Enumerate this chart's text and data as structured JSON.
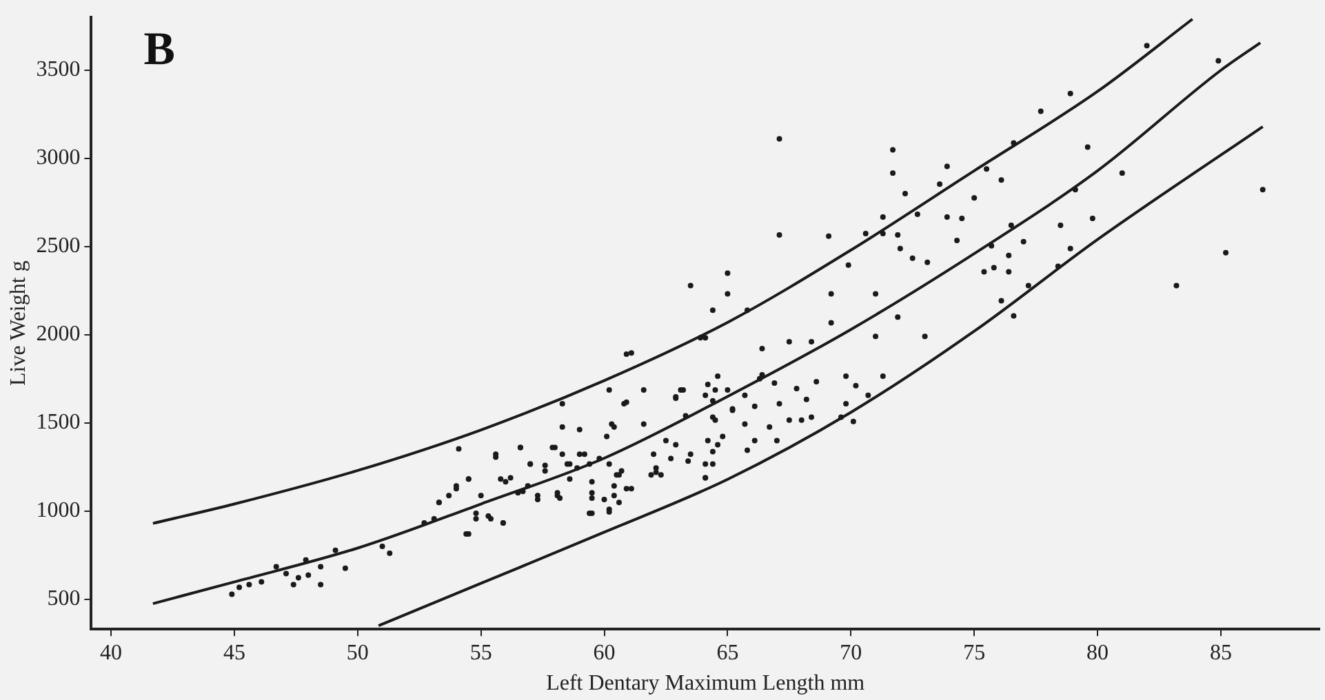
{
  "chart_data": {
    "type": "scatter",
    "xlabel": "Left Dentary Maximum Length mm",
    "ylabel": "Live Weight g",
    "annotations": [
      "B"
    ],
    "xlim": [
      39.2,
      89
    ],
    "ylim": [
      330,
      3800
    ],
    "xticks": [
      40,
      45,
      50,
      55,
      60,
      65,
      70,
      75,
      80,
      85
    ],
    "yticks": [
      500,
      1000,
      1500,
      2000,
      2500,
      3000,
      3500
    ],
    "grid": false,
    "legend": false,
    "line_style": "solid",
    "series": [
      {
        "marker": "circle",
        "color": "#1a1a1a",
        "x": [
          54.1,
          54.5,
          52.7,
          53.1,
          53.3,
          53.7,
          54.0,
          54.5,
          55.0,
          54.8,
          55.4,
          55.6,
          55.9,
          56.0,
          56.6,
          56.5,
          56.9,
          57.0,
          57.3,
          57.6,
          58.1,
          58.3,
          58.3,
          58.0,
          58.5,
          58.6,
          59.0,
          59.2,
          59.5,
          59.5,
          59.5,
          60.2,
          60.2,
          60.3,
          60.2,
          60.5,
          60.8,
          60.9,
          60.9,
          60.4,
          59.8,
          44.9,
          45.2,
          45.6,
          46.1,
          46.7,
          47.1,
          47.4,
          47.6,
          47.9,
          48.0,
          48.5,
          48.5,
          49.1,
          49.5,
          51.0,
          51.3,
          61.1,
          64.1,
          61.6,
          60.9,
          60.4,
          60.1,
          61.6,
          63.1,
          62.9,
          64.2,
          64.6,
          65.0,
          64.1,
          64.4,
          63.3,
          64.4,
          65.2,
          65.7,
          62.5,
          62.9,
          63.5,
          64.2,
          64.4,
          64.6,
          64.8,
          64.1,
          63.4,
          62.0,
          62.1,
          61.9,
          62.3,
          62.7,
          64.1,
          61.1,
          60.6,
          60.4,
          60.0,
          59.5,
          59.4,
          60.2,
          60.6,
          60.7,
          55.6,
          56.6,
          57.9,
          58.3,
          57.6,
          57.0,
          55.8,
          56.2,
          56.7,
          57.3,
          58.1,
          58.2,
          59.0,
          59.4,
          58.9,
          58.6,
          54.5,
          54.0,
          53.3,
          54.8,
          55.3,
          55.9,
          54.4,
          67.1,
          67.1,
          71.7,
          71.7,
          72.2,
          72.7,
          73.6,
          73.9,
          75.0,
          75.5,
          76.1,
          76.6,
          77.7,
          78.9,
          82.0,
          84.9,
          79.6,
          81.0,
          86.7,
          85.2,
          83.2,
          79.1,
          79.8,
          78.5,
          78.9,
          78.4,
          77.2,
          77.0,
          76.5,
          76.4,
          76.4,
          75.8,
          75.4,
          75.7,
          76.1,
          76.6,
          74.3,
          73.9,
          74.5,
          73.1,
          72.5,
          72.0,
          71.9,
          71.3,
          70.6,
          71.3,
          69.9,
          69.1,
          69.2,
          69.2,
          71.0,
          71.9,
          73.0,
          71.0,
          71.3,
          69.8,
          70.2,
          70.7,
          69.8,
          69.6,
          70.1,
          68.4,
          67.5,
          66.4,
          63.5,
          65.0,
          65.0,
          64.4,
          65.8,
          63.9,
          68.6,
          67.8,
          68.2,
          67.1,
          67.5,
          68.0,
          68.4,
          66.9,
          66.3,
          66.4,
          65.7,
          66.1,
          66.7,
          67.0,
          66.1,
          65.8,
          65.2,
          64.5,
          64.5,
          62.9,
          63.2,
          64.1,
          64.4,
          62.1
        ],
        "values": [
          1353,
          870,
          933,
          956,
          1049,
          1088,
          1143,
          1182,
          1088,
          987,
          956,
          1306,
          933,
          1166,
          1360,
          1104,
          1143,
          1267,
          1088,
          1228,
          1088,
          1609,
          1477,
          1360,
          1267,
          1182,
          1462,
          1322,
          1166,
          1073,
          987,
          1010,
          1687,
          1493,
          1267,
          1205,
          1609,
          1890,
          1127,
          1088,
          1298,
          528,
          567,
          583,
          598,
          684,
          645,
          583,
          622,
          723,
          637,
          684,
          583,
          777,
          676,
          800,
          761,
          1897,
          1983,
          1687,
          1617,
          1477,
          1423,
          1493,
          1687,
          1640,
          1718,
          1765,
          1687,
          1656,
          1625,
          1540,
          1532,
          1571,
          1493,
          1400,
          1376,
          1322,
          1400,
          1337,
          1376,
          1423,
          1267,
          1283,
          1322,
          1244,
          1205,
          1205,
          1298,
          1189,
          1127,
          1205,
          1143,
          1065,
          1104,
          987,
          995,
          1049,
          1228,
          1322,
          1360,
          1360,
          1322,
          1259,
          1267,
          1182,
          1189,
          1111,
          1065,
          1104,
          1073,
          1322,
          1267,
          1244,
          1267,
          1182,
          1127,
          1049,
          956,
          972,
          933,
          870,
          3111,
          2566,
          3049,
          2917,
          2800,
          2683,
          2854,
          2955,
          2776,
          2940,
          2878,
          3088,
          3267,
          3368,
          3640,
          3554,
          3064,
          2917,
          2823,
          2465,
          2279,
          2823,
          2660,
          2621,
          2489,
          2388,
          2279,
          2528,
          2621,
          2450,
          2357,
          2380,
          2357,
          2504,
          2193,
          2107,
          2535,
          2668,
          2660,
          2411,
          2434,
          2489,
          2566,
          2574,
          2574,
          2668,
          2395,
          2559,
          2232,
          2068,
          2232,
          2100,
          1991,
          1991,
          1765,
          1765,
          1711,
          1656,
          1609,
          1532,
          1508,
          1960,
          1960,
          1921,
          2279,
          2349,
          2232,
          2139,
          2139,
          1983,
          1734,
          1695,
          1633,
          1609,
          1516,
          1516,
          1532,
          1726,
          1750,
          1773,
          1656,
          1594,
          1477,
          1400,
          1400,
          1345,
          1579,
          1687,
          1516,
          1648,
          1687,
          1189,
          1267,
          1220
        ]
      },
      {
        "type": "line",
        "marker": "none",
        "color": "#1a1a1a",
        "x": [
          41.7,
          45,
          50,
          55,
          60,
          65,
          70,
          75,
          80,
          83.85
        ],
        "values": [
          930,
          1040,
          1230,
          1460,
          1740,
          2070,
          2480,
          2930,
          3380,
          3790
        ]
      },
      {
        "type": "line",
        "marker": "none",
        "color": "#1a1a1a",
        "x": [
          41.7,
          45,
          50,
          55,
          60,
          65,
          70,
          75,
          80,
          85,
          86.6
        ],
        "values": [
          475,
          598,
          790,
          1040,
          1300,
          1650,
          2030,
          2460,
          2930,
          3500,
          3656
        ]
      },
      {
        "type": "line",
        "marker": "none",
        "color": "#1a1a1a",
        "x": [
          50.85,
          55,
          60,
          65,
          70,
          75,
          80,
          86.7
        ],
        "values": [
          350,
          590,
          880,
          1180,
          1560,
          2020,
          2540,
          3180
        ]
      }
    ]
  }
}
